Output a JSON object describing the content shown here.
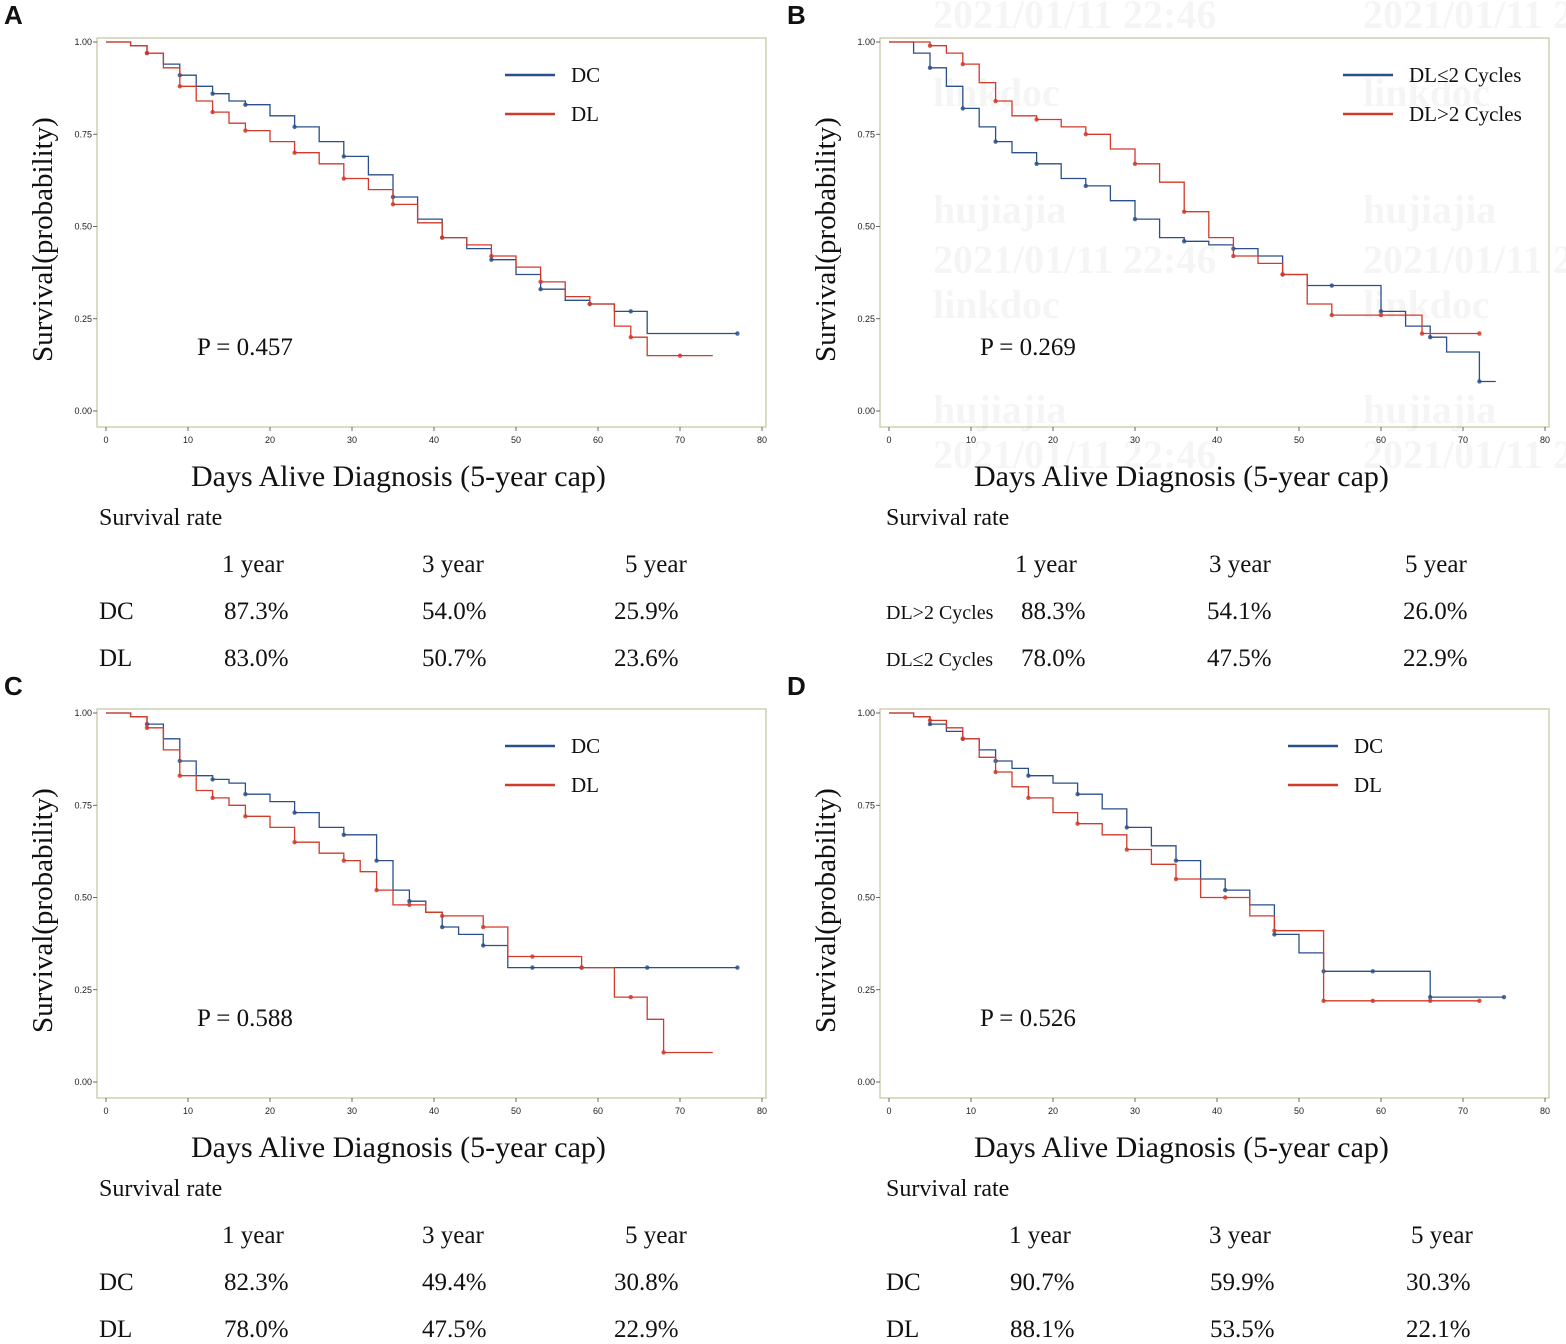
{
  "chart_data": [
    {
      "type": "line",
      "panel": "A",
      "xlabel": "Days Alive Diagnosis (5-year cap)",
      "ylabel": "Survival(probability)",
      "xlim": [
        0,
        80
      ],
      "ylim": [
        0,
        1
      ],
      "xticks": [
        "0",
        "10",
        "20",
        "30",
        "40",
        "50",
        "60",
        "70",
        "80"
      ],
      "yticks": [
        "0.00",
        "0.25",
        "0.50",
        "0.75",
        "1.00"
      ],
      "p_value": "P = 0.457",
      "legend_placement": "top-right",
      "series": [
        {
          "name": "DC",
          "color": "#2b4f8a",
          "x": [
            0,
            3,
            5,
            7,
            9,
            11,
            13,
            15,
            17,
            20,
            23,
            26,
            29,
            32,
            35,
            38,
            41,
            44,
            47,
            50,
            53,
            56,
            59,
            62,
            64,
            66,
            77
          ],
          "y": [
            1,
            0.99,
            0.97,
            0.94,
            0.91,
            0.88,
            0.86,
            0.84,
            0.83,
            0.8,
            0.77,
            0.73,
            0.69,
            0.64,
            0.58,
            0.52,
            0.47,
            0.44,
            0.41,
            0.37,
            0.33,
            0.3,
            0.29,
            0.27,
            0.27,
            0.21,
            0.21
          ]
        },
        {
          "name": "DL",
          "color": "#d23a2a",
          "x": [
            0,
            3,
            5,
            7,
            9,
            11,
            13,
            15,
            17,
            20,
            23,
            26,
            29,
            32,
            35,
            38,
            41,
            44,
            47,
            50,
            53,
            56,
            59,
            62,
            64,
            66,
            70,
            74
          ],
          "y": [
            1,
            0.99,
            0.97,
            0.93,
            0.88,
            0.84,
            0.81,
            0.78,
            0.76,
            0.73,
            0.7,
            0.67,
            0.63,
            0.6,
            0.56,
            0.51,
            0.47,
            0.45,
            0.42,
            0.39,
            0.35,
            0.31,
            0.29,
            0.23,
            0.2,
            0.15,
            0.15,
            0.15
          ]
        }
      ],
      "survival_rate": {
        "title": "Survival rate",
        "headers": [
          "1 year",
          "3 year",
          "5 year"
        ],
        "rows": [
          {
            "label": "DC",
            "values": [
              "87.3%",
              "54.0%",
              "25.9%"
            ]
          },
          {
            "label": "DL",
            "values": [
              "83.0%",
              "50.7%",
              "23.6%"
            ]
          }
        ]
      }
    },
    {
      "type": "line",
      "panel": "B",
      "xlabel": "Days Alive Diagnosis (5-year cap)",
      "ylabel": "Survival(probability)",
      "xlim": [
        0,
        80
      ],
      "ylim": [
        0,
        1
      ],
      "xticks": [
        "0",
        "10",
        "20",
        "30",
        "40",
        "50",
        "60",
        "70",
        "80"
      ],
      "yticks": [
        "0.00",
        "0.25",
        "0.50",
        "0.75",
        "1.00"
      ],
      "p_value": "P = 0.269",
      "legend_placement": "top-right",
      "series": [
        {
          "name": "DL≤2 Cycles",
          "color": "#2b4f8a",
          "x": [
            0,
            3,
            5,
            7,
            9,
            11,
            13,
            15,
            18,
            21,
            24,
            27,
            30,
            33,
            36,
            39,
            42,
            45,
            48,
            51,
            54,
            57,
            60,
            63,
            66,
            68,
            72,
            74
          ],
          "y": [
            1,
            0.97,
            0.93,
            0.88,
            0.82,
            0.77,
            0.73,
            0.7,
            0.67,
            0.63,
            0.61,
            0.57,
            0.52,
            0.47,
            0.46,
            0.45,
            0.44,
            0.42,
            0.37,
            0.34,
            0.34,
            0.34,
            0.27,
            0.23,
            0.2,
            0.16,
            0.08,
            0.08
          ]
        },
        {
          "name": "DL>2 Cycles",
          "color": "#d23a2a",
          "x": [
            0,
            3,
            5,
            7,
            9,
            11,
            13,
            15,
            18,
            21,
            24,
            27,
            30,
            33,
            36,
            39,
            42,
            45,
            48,
            51,
            54,
            57,
            60,
            63,
            65,
            68,
            72
          ],
          "y": [
            1,
            1,
            0.99,
            0.97,
            0.94,
            0.89,
            0.84,
            0.8,
            0.79,
            0.77,
            0.75,
            0.71,
            0.67,
            0.62,
            0.54,
            0.47,
            0.42,
            0.4,
            0.37,
            0.29,
            0.26,
            0.26,
            0.26,
            0.26,
            0.21,
            0.21,
            0.21
          ]
        }
      ],
      "watermark": [
        "2021/01/11 22:46",
        "linkdoc",
        "hujiajia"
      ],
      "survival_rate": {
        "title": "Survival rate",
        "headers": [
          "1 year",
          "3 year",
          "5 year"
        ],
        "rows": [
          {
            "label": "DL>2 Cycles",
            "values": [
              "88.3%",
              "54.1%",
              "26.0%"
            ]
          },
          {
            "label": "DL≤2 Cycles",
            "values": [
              "78.0%",
              "47.5%",
              "22.9%"
            ]
          }
        ]
      }
    },
    {
      "type": "line",
      "panel": "C",
      "xlabel": "Days Alive Diagnosis (5-year cap)",
      "ylabel": "Survival(probability)",
      "xlim": [
        0,
        80
      ],
      "ylim": [
        0,
        1
      ],
      "xticks": [
        "0",
        "10",
        "20",
        "30",
        "40",
        "50",
        "60",
        "70",
        "80"
      ],
      "yticks": [
        "0.00",
        "0.25",
        "0.50",
        "0.75",
        "1.00"
      ],
      "p_value": "P = 0.588",
      "legend_placement": "top-right",
      "series": [
        {
          "name": "DC",
          "color": "#2b4f8a",
          "x": [
            0,
            3,
            5,
            7,
            9,
            11,
            13,
            15,
            17,
            20,
            23,
            26,
            29,
            31,
            33,
            35,
            37,
            39,
            41,
            43,
            46,
            49,
            52,
            55,
            58,
            62,
            66,
            70,
            77
          ],
          "y": [
            1,
            0.99,
            0.97,
            0.93,
            0.87,
            0.83,
            0.82,
            0.81,
            0.78,
            0.76,
            0.73,
            0.69,
            0.67,
            0.67,
            0.6,
            0.52,
            0.49,
            0.46,
            0.42,
            0.4,
            0.37,
            0.31,
            0.31,
            0.31,
            0.31,
            0.31,
            0.31,
            0.31,
            0.31
          ]
        },
        {
          "name": "DL",
          "color": "#d23a2a",
          "x": [
            0,
            3,
            5,
            7,
            9,
            11,
            13,
            15,
            17,
            20,
            23,
            26,
            29,
            31,
            33,
            35,
            37,
            39,
            41,
            43,
            46,
            49,
            52,
            55,
            58,
            62,
            64,
            66,
            68,
            74
          ],
          "y": [
            1,
            0.99,
            0.96,
            0.9,
            0.83,
            0.79,
            0.77,
            0.75,
            0.72,
            0.69,
            0.65,
            0.62,
            0.6,
            0.57,
            0.52,
            0.48,
            0.48,
            0.46,
            0.45,
            0.45,
            0.42,
            0.34,
            0.34,
            0.34,
            0.31,
            0.23,
            0.23,
            0.17,
            0.08,
            0.08
          ]
        }
      ],
      "survival_rate": {
        "title": "Survival rate",
        "headers": [
          "1 year",
          "3 year",
          "5 year"
        ],
        "rows": [
          {
            "label": "DC",
            "values": [
              "82.3%",
              "49.4%",
              "30.8%"
            ]
          },
          {
            "label": "DL",
            "values": [
              "78.0%",
              "47.5%",
              "22.9%"
            ]
          }
        ]
      }
    },
    {
      "type": "line",
      "panel": "D",
      "xlabel": "Days Alive Diagnosis (5-year cap)",
      "ylabel": "Survival(probability)",
      "xlim": [
        0,
        80
      ],
      "ylim": [
        0,
        1
      ],
      "xticks": [
        "0",
        "10",
        "20",
        "30",
        "40",
        "50",
        "60",
        "70",
        "80"
      ],
      "yticks": [
        "0.00",
        "0.25",
        "0.50",
        "0.75",
        "1.00"
      ],
      "p_value": "P = 0.526",
      "legend_placement": "top-right",
      "series": [
        {
          "name": "DC",
          "color": "#2b4f8a",
          "x": [
            0,
            3,
            5,
            7,
            9,
            11,
            13,
            15,
            17,
            20,
            23,
            26,
            29,
            32,
            35,
            38,
            41,
            44,
            47,
            50,
            53,
            56,
            59,
            62,
            66,
            70,
            75
          ],
          "y": [
            1,
            0.99,
            0.97,
            0.95,
            0.93,
            0.9,
            0.87,
            0.85,
            0.83,
            0.81,
            0.78,
            0.74,
            0.69,
            0.64,
            0.6,
            0.55,
            0.52,
            0.48,
            0.4,
            0.35,
            0.3,
            0.3,
            0.3,
            0.3,
            0.23,
            0.23,
            0.23
          ]
        },
        {
          "name": "DL",
          "color": "#d23a2a",
          "x": [
            0,
            3,
            5,
            7,
            9,
            11,
            13,
            15,
            17,
            20,
            23,
            26,
            29,
            32,
            35,
            38,
            41,
            44,
            47,
            50,
            53,
            56,
            59,
            62,
            66,
            70,
            72
          ],
          "y": [
            1,
            0.99,
            0.98,
            0.96,
            0.93,
            0.88,
            0.84,
            0.8,
            0.77,
            0.73,
            0.7,
            0.67,
            0.63,
            0.59,
            0.55,
            0.5,
            0.5,
            0.45,
            0.41,
            0.41,
            0.22,
            0.22,
            0.22,
            0.22,
            0.22,
            0.22,
            0.22
          ]
        }
      ],
      "survival_rate": {
        "title": "Survival rate",
        "headers": [
          "1 year",
          "3 year",
          "5 year"
        ],
        "rows": [
          {
            "label": "DC",
            "values": [
              "90.7%",
              "59.9%",
              "30.3%"
            ]
          },
          {
            "label": "DL",
            "values": [
              "88.1%",
              "53.5%",
              "22.1%"
            ]
          }
        ]
      }
    }
  ]
}
